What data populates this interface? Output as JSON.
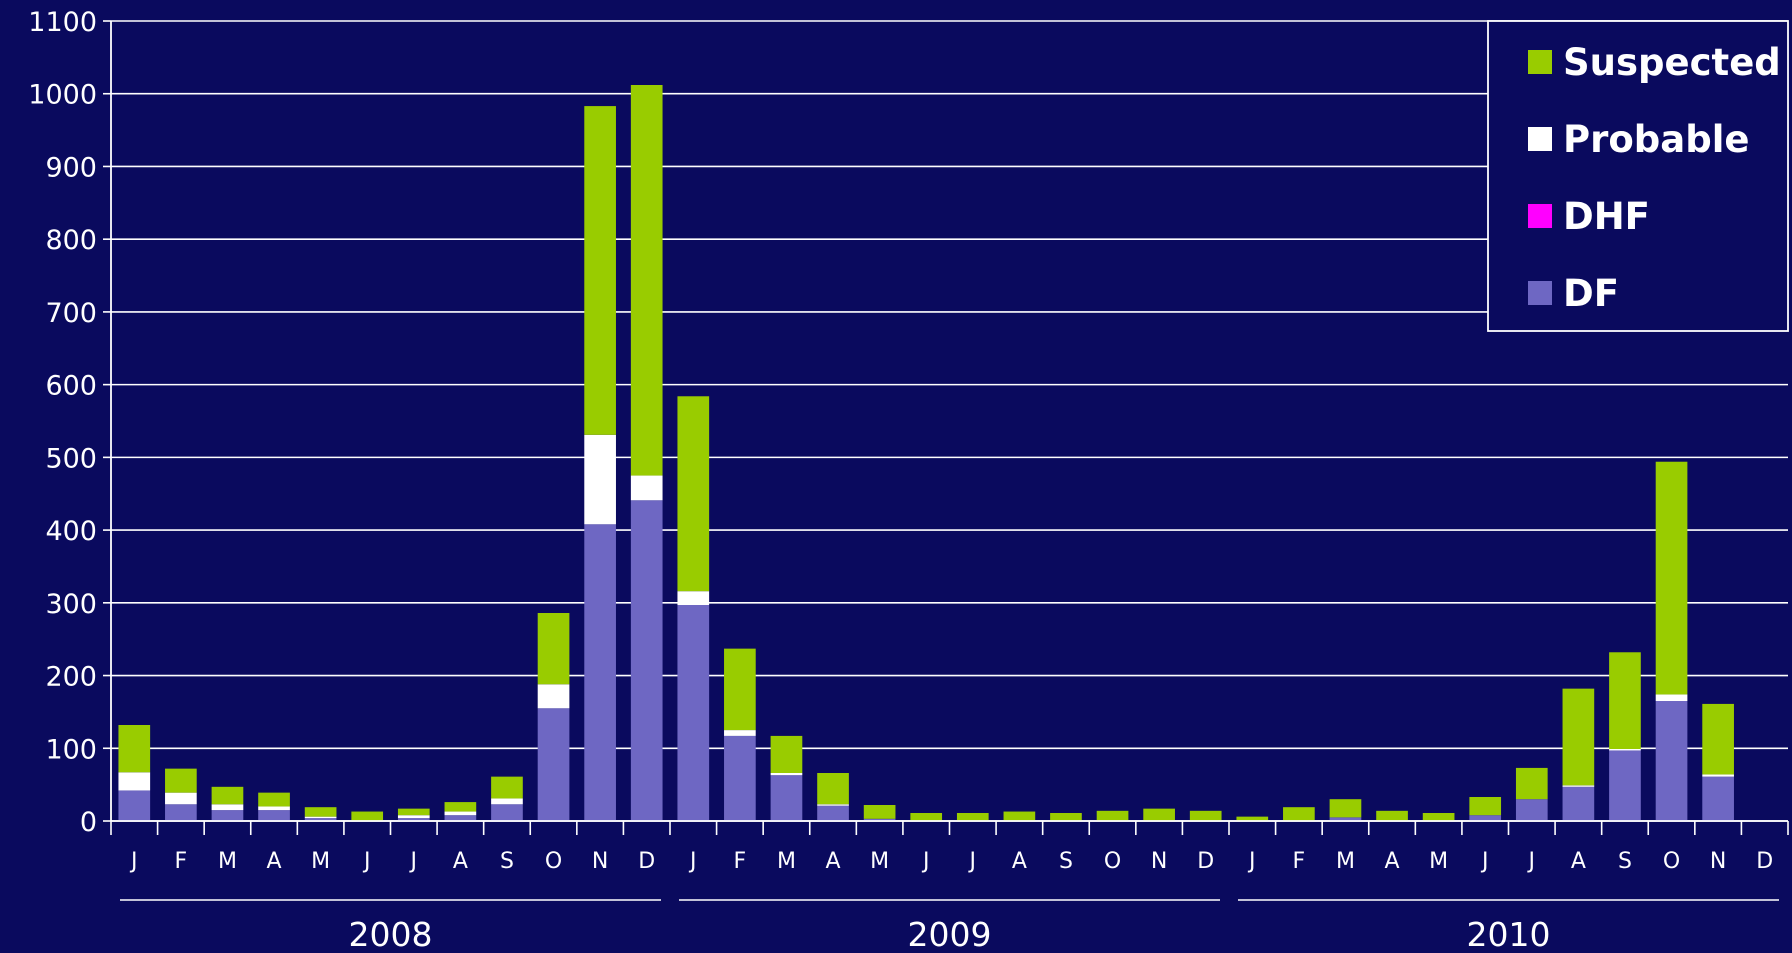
{
  "chart_data": {
    "type": "bar",
    "stacked": true,
    "ylim": [
      0,
      1100
    ],
    "yticks": [
      0,
      100,
      200,
      300,
      400,
      500,
      600,
      700,
      800,
      900,
      1000,
      1100
    ],
    "grid": true,
    "legend_position": "top-right",
    "categories": [
      "J",
      "F",
      "M",
      "A",
      "M",
      "J",
      "J",
      "A",
      "S",
      "O",
      "N",
      "D",
      "J",
      "F",
      "M",
      "A",
      "M",
      "J",
      "J",
      "A",
      "S",
      "O",
      "N",
      "D",
      "J",
      "F",
      "M",
      "A",
      "M",
      "J",
      "J",
      "A",
      "S",
      "O",
      "N",
      "D"
    ],
    "years": [
      {
        "label": "2008",
        "start_index": 0,
        "end_index": 11
      },
      {
        "label": "2009",
        "start_index": 12,
        "end_index": 23
      },
      {
        "label": "2010",
        "start_index": 24,
        "end_index": 35
      }
    ],
    "series": [
      {
        "name": "DF",
        "color": "#6e67c3",
        "values": [
          42,
          23,
          15,
          15,
          4,
          0,
          4,
          8,
          23,
          155,
          408,
          441,
          297,
          117,
          63,
          21,
          3,
          0,
          0,
          0,
          0,
          0,
          0,
          0,
          0,
          0,
          5,
          0,
          0,
          8,
          30,
          47,
          97,
          165,
          61,
          0
        ]
      },
      {
        "name": "DHF",
        "color": "#ff00ff",
        "values": [
          0,
          0,
          0,
          0,
          0,
          0,
          0,
          0,
          0,
          0,
          0,
          0,
          0,
          0,
          0,
          0,
          0,
          0,
          0,
          0,
          0,
          0,
          0,
          0,
          0,
          0,
          0,
          0,
          0,
          0,
          0,
          0,
          0,
          0,
          0,
          0
        ]
      },
      {
        "name": "Probable",
        "color": "#ffffff",
        "values": [
          25,
          16,
          8,
          5,
          2,
          0,
          4,
          5,
          8,
          33,
          123,
          34,
          19,
          8,
          3,
          2,
          0,
          0,
          0,
          0,
          0,
          0,
          0,
          0,
          0,
          0,
          0,
          0,
          0,
          0,
          0,
          2,
          2,
          9,
          3,
          0
        ]
      },
      {
        "name": "Suspected",
        "color": "#99cc00",
        "values": [
          65,
          33,
          24,
          19,
          13,
          13,
          9,
          13,
          30,
          98,
          452,
          537,
          268,
          112,
          51,
          43,
          19,
          11,
          11,
          13,
          11,
          14,
          17,
          14,
          6,
          19,
          25,
          14,
          11,
          25,
          43,
          133,
          133,
          320,
          97,
          0
        ]
      }
    ],
    "legend_order": [
      "Suspected",
      "Probable",
      "DHF",
      "DF"
    ]
  }
}
